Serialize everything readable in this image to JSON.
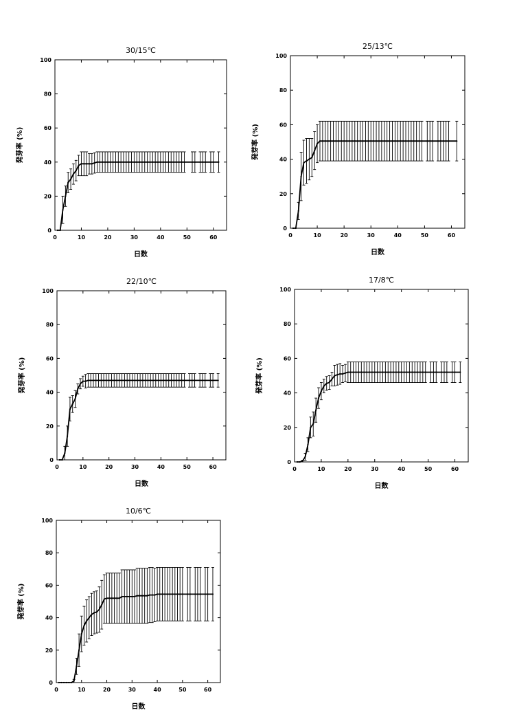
{
  "chart_data": [
    {
      "type": "line",
      "title": "30/15℃",
      "xlabel": "日数",
      "ylabel": "発芽率 (%)",
      "xlim": [
        0,
        65
      ],
      "ylim": [
        0,
        100
      ],
      "xticks": [
        0,
        10,
        20,
        30,
        40,
        50,
        60
      ],
      "yticks": [
        0,
        20,
        40,
        60,
        80,
        100
      ],
      "grid": false,
      "series": [
        {
          "x": [
            1,
            2,
            3,
            4,
            5,
            6,
            7,
            8,
            9,
            10,
            11,
            12,
            13,
            14,
            15,
            16,
            17,
            18,
            19,
            20,
            21,
            22,
            23,
            24,
            25,
            26,
            27,
            28,
            29,
            30,
            31,
            32,
            33,
            34,
            35,
            36,
            37,
            38,
            39,
            40,
            41,
            42,
            43,
            44,
            45,
            46,
            47,
            48,
            49,
            52,
            53,
            55,
            56,
            57,
            59,
            60,
            62
          ],
          "y": [
            0,
            0,
            12,
            20,
            28,
            30,
            33,
            35,
            38,
            39,
            39,
            39,
            39,
            39,
            39.5,
            40,
            40,
            40,
            40,
            40,
            40,
            40,
            40,
            40,
            40,
            40,
            40,
            40,
            40,
            40,
            40,
            40,
            40,
            40,
            40,
            40,
            40,
            40,
            40,
            40,
            40,
            40,
            40,
            40,
            40,
            40,
            40,
            40,
            40,
            40,
            40,
            40,
            40,
            40,
            40,
            40,
            40
          ],
          "err": [
            0,
            0,
            8,
            6,
            6,
            6,
            6,
            6,
            6,
            7,
            7,
            7,
            6,
            6,
            6,
            6,
            6,
            6,
            6,
            6,
            6,
            6,
            6,
            6,
            6,
            6,
            6,
            6,
            6,
            6,
            6,
            6,
            6,
            6,
            6,
            6,
            6,
            6,
            6,
            6,
            6,
            6,
            6,
            6,
            6,
            6,
            6,
            6,
            6,
            6,
            6,
            6,
            6,
            6,
            6,
            6,
            6
          ]
        }
      ]
    },
    {
      "type": "line",
      "title": "25/13℃",
      "xlabel": "日数",
      "ylabel": "発芽率 (%)",
      "xlim": [
        0,
        65
      ],
      "ylim": [
        0,
        100
      ],
      "xticks": [
        0,
        10,
        20,
        30,
        40,
        50,
        60
      ],
      "yticks": [
        0,
        20,
        40,
        60,
        80,
        100
      ],
      "grid": false,
      "series": [
        {
          "x": [
            1,
            2,
            3,
            4,
            5,
            6,
            7,
            8,
            9,
            10,
            11,
            12,
            13,
            14,
            15,
            16,
            17,
            18,
            19,
            20,
            21,
            22,
            23,
            24,
            25,
            26,
            27,
            28,
            29,
            30,
            31,
            32,
            33,
            34,
            35,
            36,
            37,
            38,
            39,
            40,
            41,
            42,
            43,
            44,
            45,
            46,
            47,
            48,
            49,
            51,
            52,
            53,
            55,
            56,
            57,
            58,
            59,
            62
          ],
          "y": [
            0,
            0,
            10,
            30,
            38,
            39,
            40,
            41,
            45,
            49,
            50.5,
            50.5,
            50.5,
            50.5,
            50.5,
            50.5,
            50.5,
            50.5,
            50.5,
            50.5,
            50.5,
            50.5,
            50.5,
            50.5,
            50.5,
            50.5,
            50.5,
            50.5,
            50.5,
            50.5,
            50.5,
            50.5,
            50.5,
            50.5,
            50.5,
            50.5,
            50.5,
            50.5,
            50.5,
            50.5,
            50.5,
            50.5,
            50.5,
            50.5,
            50.5,
            50.5,
            50.5,
            50.5,
            50.5,
            50.5,
            50.5,
            50.5,
            50.5,
            50.5,
            50.5,
            50.5,
            50.5,
            50.5
          ],
          "err": [
            0,
            0,
            5,
            14,
            13,
            13,
            12,
            11,
            11,
            11,
            11.5,
            11.5,
            11.5,
            11.5,
            11.5,
            11.5,
            11.5,
            11.5,
            11.5,
            11.5,
            11.5,
            11.5,
            11.5,
            11.5,
            11.5,
            11.5,
            11.5,
            11.5,
            11.5,
            11.5,
            11.5,
            11.5,
            11.5,
            11.5,
            11.5,
            11.5,
            11.5,
            11.5,
            11.5,
            11.5,
            11.5,
            11.5,
            11.5,
            11.5,
            11.5,
            11.5,
            11.5,
            11.5,
            11.5,
            11.5,
            11.5,
            11.5,
            11.5,
            11.5,
            11.5,
            11.5,
            11.5,
            11.5
          ]
        }
      ]
    },
    {
      "type": "line",
      "title": "22/10℃",
      "xlabel": "日数",
      "ylabel": "発芽率 (%)",
      "xlim": [
        0,
        65
      ],
      "ylim": [
        0,
        100
      ],
      "xticks": [
        0,
        10,
        20,
        30,
        40,
        50,
        60
      ],
      "yticks": [
        0,
        20,
        40,
        60,
        80,
        100
      ],
      "grid": false,
      "series": [
        {
          "x": [
            1,
            2,
            3,
            4,
            5,
            6,
            7,
            8,
            9,
            10,
            11,
            12,
            13,
            14,
            15,
            16,
            17,
            18,
            19,
            20,
            21,
            22,
            23,
            24,
            25,
            26,
            27,
            28,
            29,
            30,
            31,
            32,
            33,
            34,
            35,
            36,
            37,
            38,
            39,
            40,
            41,
            42,
            43,
            44,
            45,
            46,
            47,
            48,
            49,
            51,
            52,
            53,
            55,
            56,
            57,
            59,
            60,
            62
          ],
          "y": [
            0,
            0,
            4,
            14,
            30,
            33,
            36,
            42,
            45,
            46.5,
            46.5,
            47,
            47,
            47,
            47,
            47,
            47,
            47,
            47,
            47,
            47,
            47,
            47,
            47,
            47,
            47,
            47,
            47,
            47,
            47,
            47,
            47,
            47,
            47,
            47,
            47,
            47,
            47,
            47,
            47,
            47,
            47,
            47,
            47,
            47,
            47,
            47,
            47,
            47,
            47,
            47,
            47,
            47,
            47,
            47,
            47,
            47,
            47
          ],
          "err": [
            0,
            0,
            4,
            6,
            7,
            5,
            5,
            3,
            3,
            3,
            4,
            4,
            4,
            4,
            4,
            4,
            4,
            4,
            4,
            4,
            4,
            4,
            4,
            4,
            4,
            4,
            4,
            4,
            4,
            4,
            4,
            4,
            4,
            4,
            4,
            4,
            4,
            4,
            4,
            4,
            4,
            4,
            4,
            4,
            4,
            4,
            4,
            4,
            4,
            4,
            4,
            4,
            4,
            4,
            4,
            4,
            4,
            4
          ]
        }
      ]
    },
    {
      "type": "line",
      "title": "17/8℃",
      "xlabel": "日数",
      "ylabel": "発芽率 (%)",
      "xlim": [
        0,
        65
      ],
      "ylim": [
        0,
        100
      ],
      "xticks": [
        0,
        10,
        20,
        30,
        40,
        50,
        60
      ],
      "yticks": [
        0,
        20,
        40,
        60,
        80,
        100
      ],
      "grid": false,
      "series": [
        {
          "x": [
            1,
            2,
            3,
            4,
            5,
            6,
            7,
            8,
            9,
            10,
            11,
            12,
            13,
            14,
            15,
            16,
            17,
            18,
            19,
            20,
            21,
            22,
            23,
            24,
            25,
            26,
            27,
            28,
            29,
            30,
            31,
            32,
            33,
            34,
            35,
            36,
            37,
            38,
            39,
            40,
            41,
            42,
            43,
            44,
            45,
            46,
            47,
            48,
            49,
            51,
            52,
            53,
            55,
            56,
            57,
            59,
            60,
            62
          ],
          "y": [
            0,
            0,
            0.5,
            3,
            10,
            20,
            22,
            30,
            37,
            41,
            44,
            45.5,
            46,
            48,
            50,
            50.5,
            51,
            51,
            51.5,
            52,
            52,
            52,
            52,
            52,
            52,
            52,
            52,
            52,
            52,
            52,
            52,
            52,
            52,
            52,
            52,
            52,
            52,
            52,
            52,
            52,
            52,
            52,
            52,
            52,
            52,
            52,
            52,
            52,
            52,
            52,
            52,
            52,
            52,
            52,
            52,
            52,
            52,
            52
          ],
          "err": [
            0,
            0,
            0.5,
            2,
            4,
            6,
            7,
            7,
            6,
            5,
            4,
            4,
            4,
            4,
            6,
            6,
            6,
            5,
            5,
            6,
            6,
            6,
            6,
            6,
            6,
            6,
            6,
            6,
            6,
            6,
            6,
            6,
            6,
            6,
            6,
            6,
            6,
            6,
            6,
            6,
            6,
            6,
            6,
            6,
            6,
            6,
            6,
            6,
            6,
            6,
            6,
            6,
            6,
            6,
            6,
            6,
            6,
            6
          ]
        }
      ]
    },
    {
      "type": "line",
      "title": "10/6℃",
      "xlabel": "日数",
      "ylabel": "発芽率 (%)",
      "xlim": [
        0,
        65
      ],
      "ylim": [
        0,
        100
      ],
      "xticks": [
        0,
        10,
        20,
        30,
        40,
        50,
        60
      ],
      "yticks": [
        0,
        20,
        40,
        60,
        80,
        100
      ],
      "grid": false,
      "series": [
        {
          "x": [
            1,
            2,
            3,
            4,
            5,
            6,
            7,
            8,
            9,
            10,
            11,
            12,
            13,
            14,
            15,
            16,
            17,
            18,
            19,
            20,
            21,
            22,
            23,
            24,
            25,
            26,
            27,
            28,
            29,
            30,
            31,
            32,
            33,
            34,
            35,
            36,
            37,
            38,
            39,
            40,
            41,
            42,
            43,
            44,
            45,
            46,
            47,
            48,
            49,
            50,
            52,
            53,
            55,
            56,
            57,
            59,
            60,
            62
          ],
          "y": [
            0,
            0,
            0,
            0,
            0,
            0,
            1,
            10,
            20,
            30,
            35,
            38,
            40,
            42,
            43,
            43.5,
            45,
            48,
            51.5,
            52,
            52,
            52,
            52,
            52,
            52,
            53,
            53,
            53,
            53,
            53,
            53,
            53.5,
            53.5,
            53.5,
            53.5,
            53.5,
            54,
            54,
            54,
            54.5,
            54.5,
            54.5,
            54.5,
            54.5,
            54.5,
            54.5,
            54.5,
            54.5,
            54.5,
            54.5,
            54.5,
            54.5,
            54.5,
            54.5,
            54.5,
            54.5,
            54.5,
            54.5
          ],
          "err": [
            0,
            0,
            0,
            0,
            0,
            0,
            1,
            5,
            10,
            11,
            12,
            13,
            13,
            13,
            13,
            13,
            14,
            15,
            15,
            15.5,
            15.5,
            15.5,
            15.5,
            15.5,
            15.5,
            16.5,
            16.5,
            16.5,
            16.5,
            16.5,
            16.5,
            17,
            17,
            17,
            17,
            17,
            17,
            17,
            16.5,
            16.5,
            16.5,
            16.5,
            16.5,
            16.5,
            16.5,
            16.5,
            16.5,
            16.5,
            16.5,
            16.5,
            16.5,
            16.5,
            16.5,
            16.5,
            16.5,
            16.5,
            16.5,
            16.5
          ]
        }
      ]
    }
  ]
}
